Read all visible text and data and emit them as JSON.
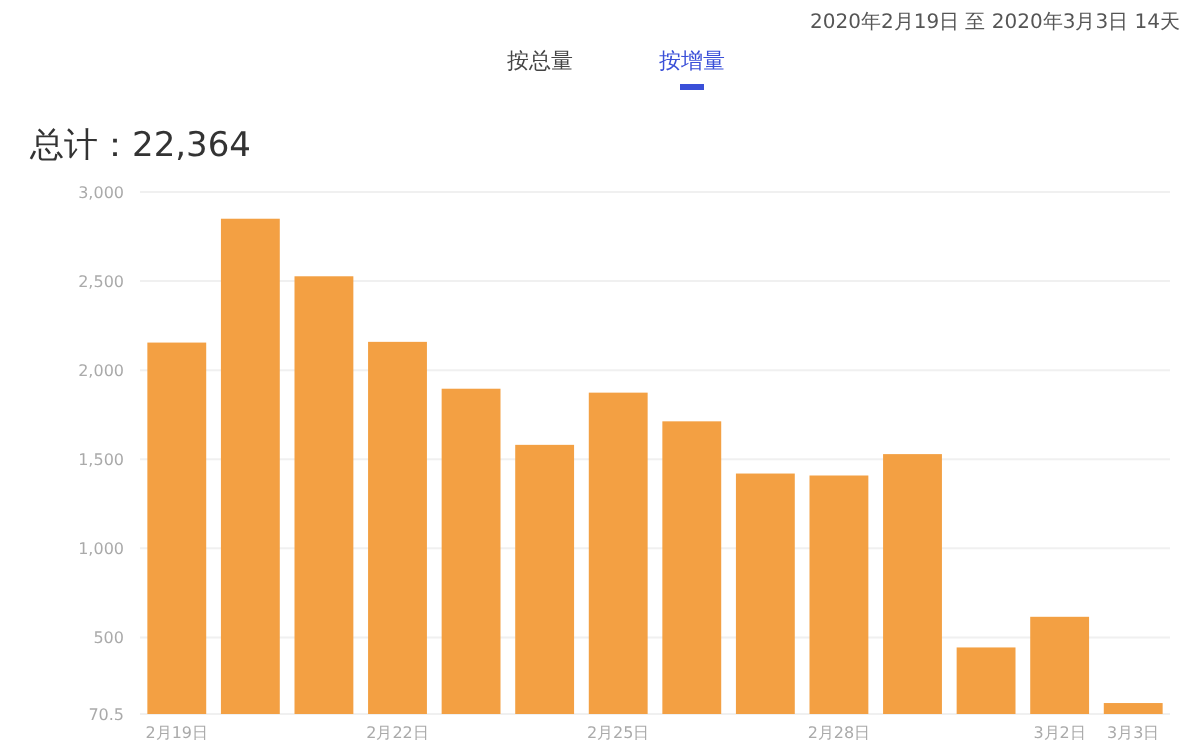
{
  "chart_data": {
    "type": "bar",
    "title": "总计：22,364",
    "annotations": [
      "按总量",
      "按增量",
      "2020年2月19日 至 2020年3月3日 14天"
    ],
    "categories": [
      "2月19日",
      null,
      null,
      "2月22日",
      null,
      null,
      "2月25日",
      null,
      null,
      "2月28日",
      null,
      null,
      "3月2日",
      "3月3日"
    ],
    "values": [
      2155,
      2850,
      2527,
      2159,
      1896,
      1581,
      1874,
      1713,
      1420,
      1409,
      1529,
      444,
      616,
      132
    ],
    "color": "#f3a043",
    "ylim": [
      70.5,
      3000
    ],
    "yticks": [
      70.5,
      500,
      {
        "value": 1000,
        "label": "1,000"
      },
      {
        "value": 1500,
        "label": "1,500"
      },
      {
        "value": 2000,
        "label": "2,000"
      },
      {
        "value": 2500,
        "label": "2,500"
      },
      {
        "value": 3000,
        "label": "3,000"
      }
    ],
    "grid": "y"
  }
}
